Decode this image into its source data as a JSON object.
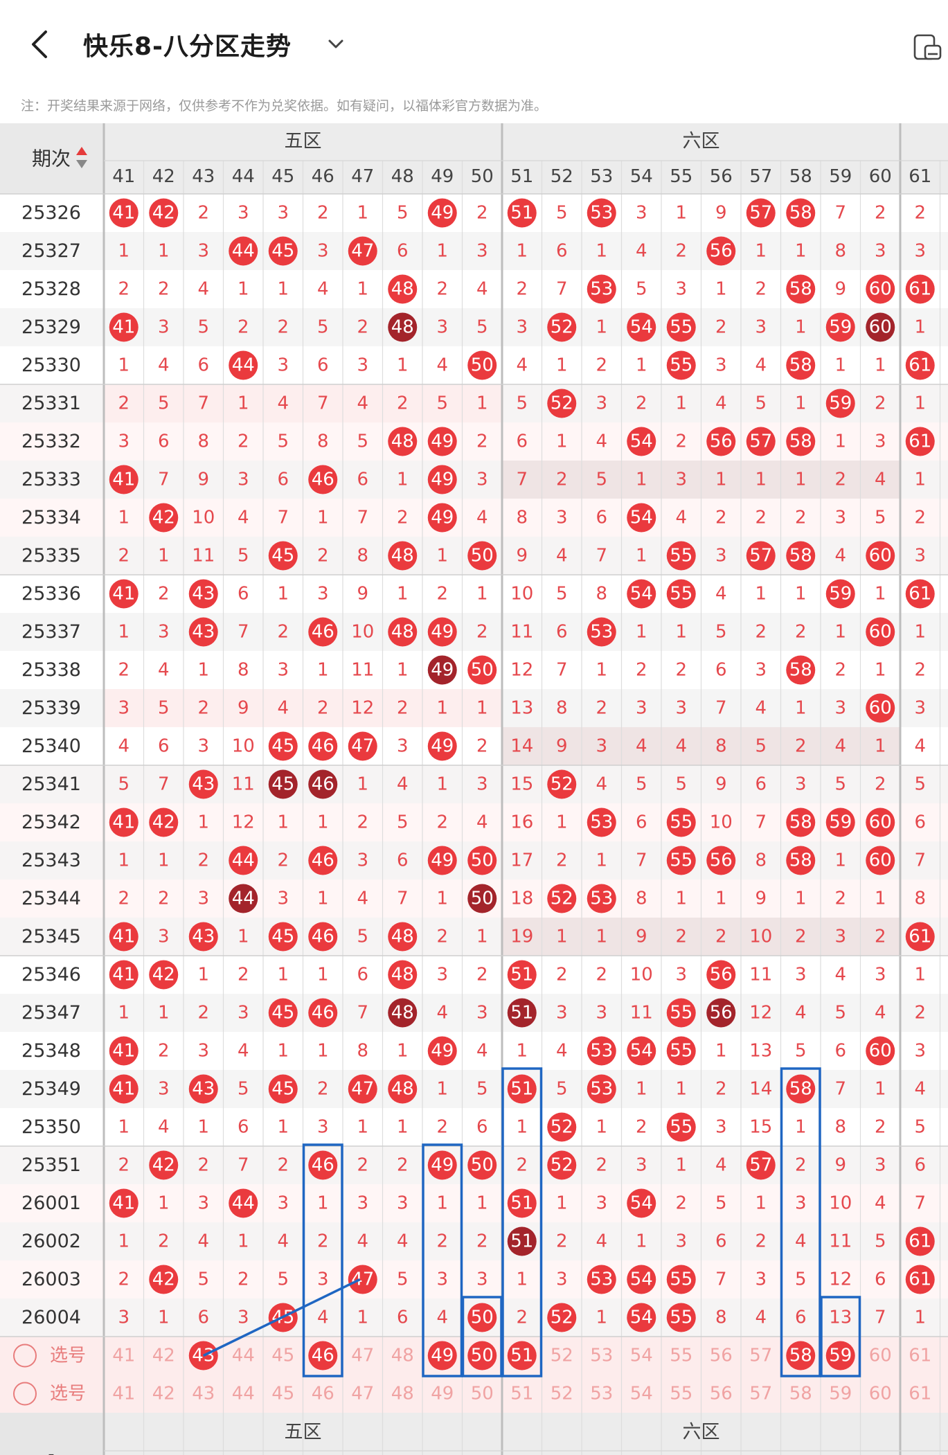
{
  "header": {
    "title": "快乐8-八分区走势",
    "note": "注：开奖结果来源于网络，仅供参考不作为兑奖依据。如有疑问，以福体彩官方数据为准。"
  },
  "table": {
    "period_header": "期次",
    "zone_labels": [
      "五区",
      "六区"
    ],
    "columns": [
      41,
      42,
      43,
      44,
      45,
      46,
      47,
      48,
      49,
      50,
      51,
      52,
      53,
      54,
      55,
      56,
      57,
      58,
      59,
      60,
      61
    ],
    "rows": [
      {
        "p": "25326",
        "v": [
          41,
          42,
          2,
          3,
          3,
          2,
          1,
          5,
          49,
          2,
          51,
          5,
          53,
          3,
          1,
          9,
          57,
          58,
          7,
          2,
          2
        ]
      },
      {
        "p": "25327",
        "v": [
          1,
          1,
          3,
          44,
          45,
          3,
          47,
          6,
          1,
          3,
          1,
          6,
          1,
          4,
          2,
          56,
          1,
          1,
          8,
          3,
          3
        ]
      },
      {
        "p": "25328",
        "v": [
          2,
          2,
          4,
          1,
          1,
          4,
          1,
          48,
          2,
          4,
          2,
          7,
          53,
          5,
          3,
          1,
          2,
          58,
          9,
          60,
          61
        ]
      },
      {
        "p": "25329",
        "v": [
          41,
          3,
          5,
          2,
          2,
          5,
          2,
          48,
          3,
          5,
          3,
          52,
          1,
          54,
          55,
          2,
          3,
          1,
          59,
          60,
          1
        ]
      },
      {
        "p": "25330",
        "v": [
          1,
          4,
          6,
          44,
          3,
          6,
          3,
          1,
          4,
          50,
          4,
          1,
          2,
          1,
          55,
          3,
          4,
          58,
          1,
          1,
          61
        ]
      },
      {
        "p": "25331",
        "v": [
          2,
          5,
          7,
          1,
          4,
          7,
          4,
          2,
          5,
          1,
          5,
          52,
          3,
          2,
          1,
          4,
          5,
          1,
          59,
          2,
          1
        ]
      },
      {
        "p": "25332",
        "v": [
          3,
          6,
          8,
          2,
          5,
          8,
          5,
          48,
          49,
          2,
          6,
          1,
          4,
          54,
          2,
          56,
          57,
          58,
          1,
          3,
          61
        ]
      },
      {
        "p": "25333",
        "v": [
          41,
          7,
          9,
          3,
          6,
          46,
          6,
          1,
          49,
          3,
          7,
          2,
          5,
          1,
          3,
          1,
          1,
          1,
          2,
          4,
          1
        ]
      },
      {
        "p": "25334",
        "v": [
          1,
          42,
          10,
          4,
          7,
          1,
          7,
          2,
          49,
          4,
          8,
          3,
          6,
          54,
          4,
          2,
          2,
          2,
          3,
          5,
          2
        ]
      },
      {
        "p": "25335",
        "v": [
          2,
          1,
          11,
          5,
          45,
          2,
          8,
          48,
          1,
          50,
          9,
          4,
          7,
          1,
          55,
          3,
          57,
          58,
          4,
          60,
          3
        ]
      },
      {
        "p": "25336",
        "v": [
          41,
          2,
          43,
          6,
          1,
          3,
          9,
          1,
          2,
          1,
          10,
          5,
          8,
          54,
          55,
          4,
          1,
          1,
          59,
          1,
          61
        ]
      },
      {
        "p": "25337",
        "v": [
          1,
          3,
          43,
          7,
          2,
          46,
          10,
          48,
          49,
          2,
          11,
          6,
          53,
          1,
          1,
          5,
          2,
          2,
          1,
          60,
          1
        ]
      },
      {
        "p": "25338",
        "v": [
          2,
          4,
          1,
          8,
          3,
          1,
          11,
          1,
          49,
          50,
          12,
          7,
          1,
          2,
          2,
          6,
          3,
          58,
          2,
          1,
          2
        ]
      },
      {
        "p": "25339",
        "v": [
          3,
          5,
          2,
          9,
          4,
          2,
          12,
          2,
          1,
          1,
          13,
          8,
          2,
          3,
          3,
          7,
          4,
          1,
          3,
          60,
          3
        ]
      },
      {
        "p": "25340",
        "v": [
          4,
          6,
          3,
          10,
          45,
          46,
          47,
          3,
          49,
          2,
          14,
          9,
          3,
          4,
          4,
          8,
          5,
          2,
          4,
          1,
          4
        ]
      },
      {
        "p": "25341",
        "v": [
          5,
          7,
          43,
          11,
          45,
          46,
          1,
          4,
          1,
          3,
          15,
          52,
          4,
          5,
          5,
          9,
          6,
          3,
          5,
          2,
          5
        ]
      },
      {
        "p": "25342",
        "v": [
          41,
          42,
          1,
          12,
          1,
          1,
          2,
          5,
          2,
          4,
          16,
          1,
          53,
          6,
          55,
          10,
          7,
          58,
          59,
          60,
          6
        ]
      },
      {
        "p": "25343",
        "v": [
          1,
          1,
          2,
          44,
          2,
          46,
          3,
          6,
          49,
          50,
          17,
          2,
          1,
          7,
          55,
          56,
          8,
          58,
          1,
          60,
          7
        ]
      },
      {
        "p": "25344",
        "v": [
          2,
          2,
          3,
          44,
          3,
          1,
          4,
          7,
          1,
          50,
          18,
          52,
          53,
          8,
          1,
          1,
          9,
          1,
          2,
          1,
          8
        ]
      },
      {
        "p": "25345",
        "v": [
          41,
          3,
          43,
          1,
          45,
          46,
          5,
          48,
          2,
          1,
          19,
          1,
          1,
          9,
          2,
          2,
          10,
          2,
          3,
          2,
          61
        ]
      },
      {
        "p": "25346",
        "v": [
          41,
          42,
          1,
          2,
          1,
          1,
          6,
          48,
          3,
          2,
          51,
          2,
          2,
          10,
          3,
          56,
          11,
          3,
          4,
          3,
          1
        ]
      },
      {
        "p": "25347",
        "v": [
          1,
          1,
          2,
          3,
          45,
          46,
          7,
          48,
          4,
          3,
          51,
          3,
          3,
          11,
          55,
          56,
          12,
          4,
          5,
          4,
          2
        ]
      },
      {
        "p": "25348",
        "v": [
          41,
          2,
          3,
          4,
          1,
          1,
          8,
          1,
          49,
          4,
          1,
          4,
          53,
          54,
          55,
          1,
          13,
          5,
          6,
          60,
          3
        ]
      },
      {
        "p": "25349",
        "v": [
          41,
          3,
          43,
          5,
          45,
          2,
          47,
          48,
          1,
          5,
          51,
          5,
          53,
          1,
          1,
          2,
          14,
          58,
          7,
          1,
          4
        ]
      },
      {
        "p": "25350",
        "v": [
          1,
          4,
          1,
          6,
          1,
          3,
          1,
          1,
          2,
          6,
          1,
          52,
          1,
          2,
          55,
          3,
          15,
          1,
          8,
          2,
          5
        ]
      },
      {
        "p": "25351",
        "v": [
          2,
          42,
          2,
          7,
          2,
          46,
          2,
          2,
          49,
          50,
          2,
          52,
          2,
          3,
          1,
          4,
          57,
          2,
          9,
          3,
          6
        ]
      },
      {
        "p": "26001",
        "v": [
          41,
          1,
          3,
          44,
          3,
          1,
          3,
          3,
          1,
          1,
          51,
          1,
          3,
          54,
          2,
          5,
          1,
          3,
          10,
          4,
          7
        ]
      },
      {
        "p": "26002",
        "v": [
          1,
          2,
          4,
          1,
          4,
          2,
          4,
          4,
          2,
          2,
          51,
          2,
          4,
          1,
          3,
          6,
          2,
          4,
          11,
          5,
          61
        ]
      },
      {
        "p": "26003",
        "v": [
          2,
          42,
          5,
          2,
          5,
          3,
          47,
          5,
          3,
          3,
          1,
          3,
          53,
          54,
          55,
          7,
          3,
          5,
          12,
          6,
          61
        ]
      },
      {
        "p": "26004",
        "v": [
          3,
          1,
          6,
          3,
          45,
          4,
          1,
          6,
          4,
          50,
          2,
          52,
          1,
          54,
          55,
          8,
          4,
          6,
          13,
          7,
          1
        ]
      }
    ],
    "select_label": "选号",
    "select_rows": [
      {
        "selected": [
          43,
          46,
          49,
          50,
          51,
          58,
          59
        ]
      },
      {
        "selected": []
      }
    ],
    "footer_dash": "-"
  },
  "colors": {
    "accent_red": "#ea3a3e",
    "dark_red": "#a3242b",
    "annotation_blue": "#1f66c2"
  }
}
